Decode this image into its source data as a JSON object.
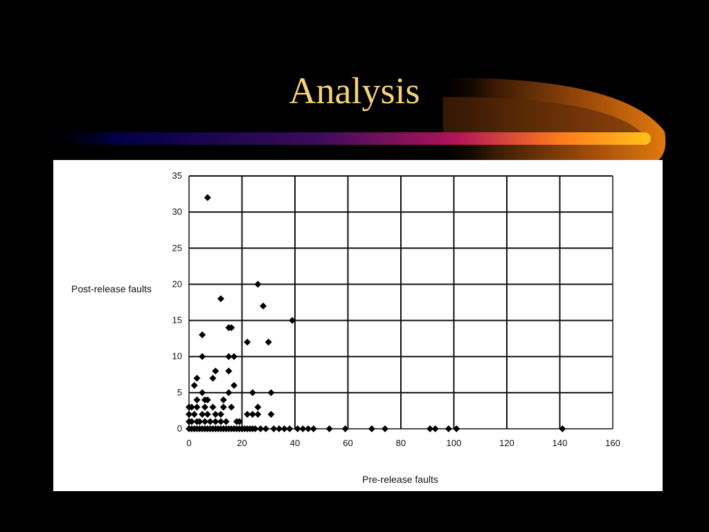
{
  "slide": {
    "title": "Analysis",
    "colors": {
      "background": "#000000",
      "title": "#f5d27a",
      "swoosh_start": "#000044",
      "swoosh_mid": "#b0145a",
      "swoosh_end": "#ffb21a"
    }
  },
  "chart_data": {
    "type": "scatter",
    "xlabel": "Pre-release faults",
    "ylabel": "Post-release faults",
    "xlim": [
      0,
      160
    ],
    "ylim": [
      0,
      35
    ],
    "xticks": [
      "0",
      "20",
      "40",
      "60",
      "80",
      "100",
      "120",
      "140",
      "160"
    ],
    "yticks": [
      "0",
      "5",
      "10",
      "15",
      "20",
      "25",
      "30",
      "35"
    ],
    "grid": true,
    "marker": "diamond",
    "marker_color": "#000000",
    "points": [
      [
        7,
        32
      ],
      [
        12,
        18
      ],
      [
        26,
        20
      ],
      [
        28,
        17
      ],
      [
        39,
        15
      ],
      [
        16,
        14
      ],
      [
        15,
        14
      ],
      [
        5,
        13
      ],
      [
        22,
        12
      ],
      [
        30,
        12
      ],
      [
        5,
        10
      ],
      [
        15,
        10
      ],
      [
        17,
        10
      ],
      [
        10,
        8
      ],
      [
        15,
        8
      ],
      [
        9,
        7
      ],
      [
        3,
        7
      ],
      [
        17,
        6
      ],
      [
        2,
        6
      ],
      [
        5,
        5
      ],
      [
        15,
        5
      ],
      [
        24,
        5
      ],
      [
        31,
        5
      ],
      [
        3,
        4
      ],
      [
        6,
        4
      ],
      [
        7,
        4
      ],
      [
        13,
        4
      ],
      [
        0,
        3
      ],
      [
        1,
        3
      ],
      [
        3,
        3
      ],
      [
        6,
        3
      ],
      [
        9,
        3
      ],
      [
        13,
        3
      ],
      [
        16,
        3
      ],
      [
        26,
        3
      ],
      [
        0,
        2
      ],
      [
        2,
        2
      ],
      [
        5,
        2
      ],
      [
        7,
        2
      ],
      [
        10,
        2
      ],
      [
        12,
        2
      ],
      [
        22,
        2
      ],
      [
        24,
        2
      ],
      [
        26,
        2
      ],
      [
        31,
        2
      ],
      [
        0,
        1
      ],
      [
        1,
        1
      ],
      [
        3,
        1
      ],
      [
        4,
        1
      ],
      [
        6,
        1
      ],
      [
        8,
        1
      ],
      [
        10,
        1
      ],
      [
        12,
        1
      ],
      [
        14,
        1
      ],
      [
        18,
        1
      ],
      [
        19,
        1
      ],
      [
        0,
        0
      ],
      [
        1,
        0
      ],
      [
        2,
        0
      ],
      [
        3,
        0
      ],
      [
        4,
        0
      ],
      [
        5,
        0
      ],
      [
        6,
        0
      ],
      [
        7,
        0
      ],
      [
        8,
        0
      ],
      [
        9,
        0
      ],
      [
        10,
        0
      ],
      [
        11,
        0
      ],
      [
        12,
        0
      ],
      [
        13,
        0
      ],
      [
        14,
        0
      ],
      [
        15,
        0
      ],
      [
        16,
        0
      ],
      [
        17,
        0
      ],
      [
        18,
        0
      ],
      [
        19,
        0
      ],
      [
        20,
        0
      ],
      [
        21,
        0
      ],
      [
        22,
        0
      ],
      [
        23,
        0
      ],
      [
        24,
        0
      ],
      [
        25,
        0
      ],
      [
        27,
        0
      ],
      [
        29,
        0
      ],
      [
        32,
        0
      ],
      [
        34,
        0
      ],
      [
        36,
        0
      ],
      [
        38,
        0
      ],
      [
        41,
        0
      ],
      [
        43,
        0
      ],
      [
        45,
        0
      ],
      [
        47,
        0
      ],
      [
        53,
        0
      ],
      [
        59,
        0
      ],
      [
        69,
        0
      ],
      [
        74,
        0
      ],
      [
        91,
        0
      ],
      [
        93,
        0
      ],
      [
        98,
        0
      ],
      [
        101,
        0
      ],
      [
        141,
        0
      ]
    ]
  }
}
